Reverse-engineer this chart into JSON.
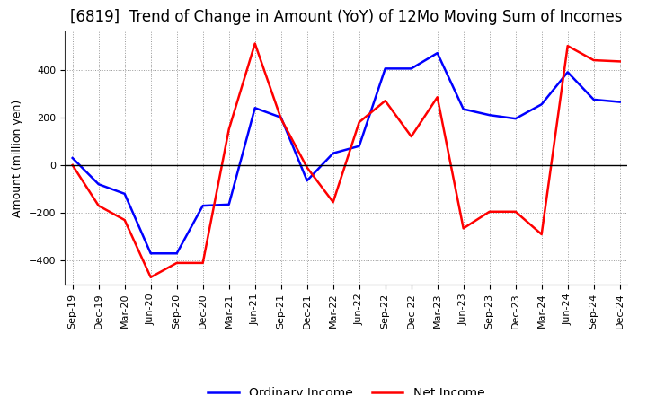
{
  "title": "[6819]  Trend of Change in Amount (YoY) of 12Mo Moving Sum of Incomes",
  "ylabel": "Amount (million yen)",
  "ylim": [
    -500,
    560
  ],
  "yticks": [
    -400,
    -200,
    0,
    200,
    400
  ],
  "x_labels": [
    "Sep-19",
    "Dec-19",
    "Mar-20",
    "Jun-20",
    "Sep-20",
    "Dec-20",
    "Mar-21",
    "Jun-21",
    "Sep-21",
    "Dec-21",
    "Mar-22",
    "Jun-22",
    "Sep-22",
    "Dec-22",
    "Mar-23",
    "Jun-23",
    "Sep-23",
    "Dec-23",
    "Mar-24",
    "Jun-24",
    "Sep-24",
    "Dec-24"
  ],
  "ordinary_income": [
    30,
    -80,
    -120,
    -370,
    -370,
    -170,
    -165,
    240,
    200,
    -65,
    50,
    80,
    405,
    405,
    470,
    235,
    210,
    195,
    255,
    390,
    275,
    265
  ],
  "net_income": [
    0,
    -170,
    -230,
    -470,
    -410,
    -410,
    150,
    510,
    195,
    -10,
    -155,
    180,
    270,
    120,
    285,
    -265,
    -195,
    -195,
    -290,
    500,
    440,
    435
  ],
  "ordinary_color": "#0000FF",
  "net_color": "#FF0000",
  "bg_color": "#FFFFFF",
  "legend_ordinary": "Ordinary Income",
  "legend_net": "Net Income",
  "title_fontsize": 12,
  "label_fontsize": 9,
  "tick_fontsize": 8,
  "legend_fontsize": 10,
  "line_width": 1.8
}
